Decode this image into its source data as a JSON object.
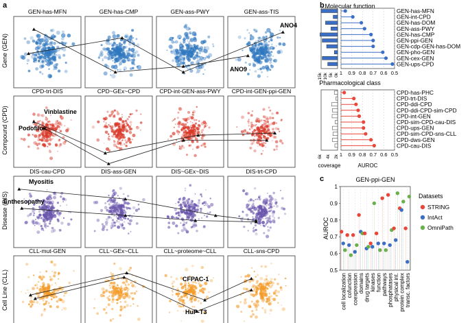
{
  "panel_a": {
    "label": "a",
    "rows": [
      {
        "name": "Gene (GEN)",
        "titles": [
          "GEN-has-MFN",
          "GEN-has-CMP",
          "GEN-ass-PWY",
          "GEN-ass-TIS"
        ],
        "color": "#2f77bf",
        "annotations": [
          "ANO4",
          "ANO9"
        ]
      },
      {
        "name": "Compound (CPD)",
        "titles": [
          "CPD-trt-DIS",
          "CPD~GEx~CPD",
          "CPD-int-GEN-ass-PWY",
          "CPD-int-GEN-ppi-GEN"
        ],
        "color": "#d93a2b",
        "annotations": [
          "Vinblastine",
          "Podofilox"
        ]
      },
      {
        "name": "Disease (DIS)",
        "titles": [
          "DIS-cau-CPD",
          "DIS-ass-GEN",
          "DIS~GEx~DIS",
          "DIS-trt-CPD"
        ],
        "color": "#6a55ad",
        "annotations": [
          "Myositis",
          "Enthesopathy"
        ]
      },
      {
        "name": "Cell Line (CLL)",
        "titles": [
          "CLL-mut-GEN",
          "CLL~GEx~CLL",
          "CLL~proteome~CLL",
          "CLL-sns-CPD"
        ],
        "color": "#f39a26",
        "annotations": [
          "CFPAC-1",
          "HuP-T3"
        ]
      }
    ]
  },
  "panel_b": {
    "label": "b",
    "chart_data": [
      {
        "type": "lollipop",
        "title": "Molecular function",
        "color": "#3b6fc6",
        "labels": [
          "GEN-has-MFN",
          "GEN-int-CPD",
          "GEN-has-DOM",
          "GEN-ass-PWY",
          "GEN-has-CMP",
          "GEN-ppi-GEN",
          "GEN-cdp-GEN-has-DOM",
          "GEN-pho-GEN",
          "GEN-cex-GEN",
          "GEN-ups-CPD"
        ],
        "auroc": [
          0.96,
          0.89,
          0.81,
          0.78,
          0.72,
          0.7,
          0.7,
          0.61,
          0.58,
          0.52
        ],
        "coverage": [
          15,
          4,
          11,
          6,
          16,
          14,
          10,
          3,
          14,
          9
        ],
        "coverage_ticks": [
          "15k",
          "10k",
          "5k",
          "0k"
        ],
        "xlim": [
          1.0,
          0.5
        ],
        "xticks": [
          "1",
          "0.9",
          "0.8",
          "0.7",
          "0.6",
          "0.5"
        ]
      },
      {
        "type": "lollipop",
        "title": "Pharmacological class",
        "color": "#e8473a",
        "labels": [
          "CPD-has-PHC",
          "CPD-trt-DIS",
          "CPD-ddi-CPD",
          "CPD-ddi-CPD-sim-CPD",
          "CPD-int-GEN",
          "CPD-sim-CPD-cau-DIS",
          "CPD-ups-GEN",
          "CPD-sim-CPD-sns-CLL",
          "CPD-dws-GEN",
          "CPD-cau-DIS"
        ],
        "auroc": [
          0.97,
          0.88,
          0.86,
          0.84,
          0.83,
          0.79,
          0.79,
          0.77,
          0.72,
          0.69
        ],
        "coverage": [
          1.2,
          0.6,
          2.2,
          1.9,
          2.0,
          0.9,
          1.9,
          1.7,
          1.9,
          1.0
        ],
        "coverage_ticks": [
          "6k",
          "4k",
          "2k"
        ],
        "xlim": [
          1.0,
          0.5
        ],
        "xticks": [
          "1",
          "0.9",
          "0.8",
          "0.7",
          "0.6",
          "0.5"
        ]
      }
    ],
    "xlabel_coverage": "coverage",
    "xlabel_auroc": "AUROC"
  },
  "panel_c": {
    "label": "c",
    "chart_data": {
      "type": "scatter",
      "title": "GEN-ppi-GEN",
      "ylabel": "AUROC",
      "ylim": [
        0.5,
        1.0
      ],
      "yticks": [
        "0.5",
        "0.6",
        "0.7",
        "0.8",
        "0.9",
        "1"
      ],
      "categories": [
        "cell localization",
        "cofunction",
        "coexpression",
        "domains",
        "drug targets",
        "kinases",
        "function",
        "pathways",
        "phosphatases",
        "physical int.",
        "protein complex",
        "transc. factors"
      ],
      "series": [
        {
          "name": "STRING",
          "color": "#e8473a",
          "values": [
            0.73,
            0.71,
            0.71,
            0.83,
            0.72,
            0.66,
            0.72,
            0.93,
            0.95,
            0.75,
            0.87,
            0.75
          ]
        },
        {
          "name": "IntAct",
          "color": "#3b6fc6",
          "values": [
            0.66,
            0.65,
            0.61,
            0.73,
            0.63,
            0.64,
            0.66,
            0.66,
            0.65,
            0.68,
            0.86,
            0.55
          ]
        },
        {
          "name": "OmniPath",
          "color": "#6ab04c",
          "values": [
            0.62,
            0.59,
            0.65,
            0.72,
            0.64,
            0.9,
            0.62,
            0.62,
            0.74,
            0.96,
            0.91,
            0.94
          ]
        }
      ],
      "legend_title": "Datasets",
      "legend_position": "right"
    }
  }
}
